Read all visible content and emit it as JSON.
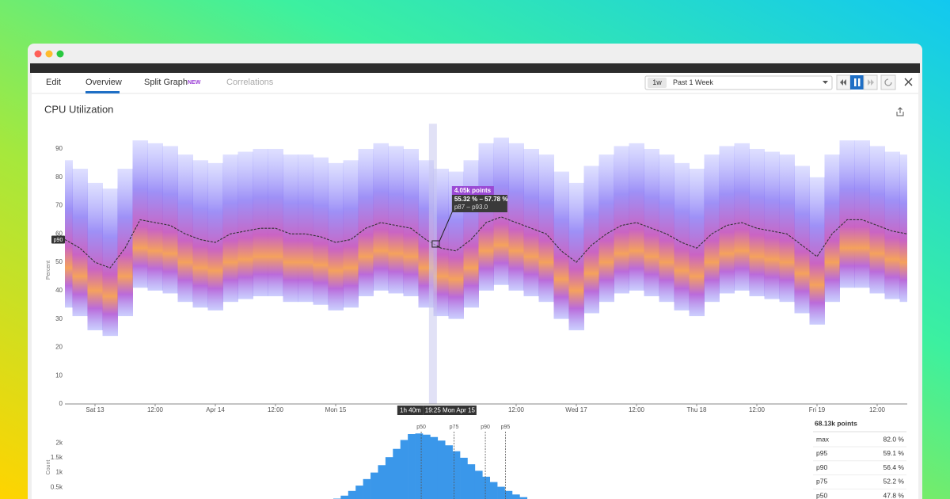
{
  "tabs": [
    "Edit",
    "Overview",
    "Split Graph",
    "Correlations"
  ],
  "new_badge": "NEW",
  "time_picker": {
    "badge": "1w",
    "label": "Past 1 Week"
  },
  "chart_data": [
    {
      "type": "heatmap",
      "title": "CPU Utilization",
      "y_label": "Percent",
      "xlim": [
        0,
        168
      ],
      "ylim": [
        0,
        100
      ],
      "yticks": [
        0,
        10,
        20,
        30,
        40,
        50,
        60,
        70,
        80,
        90
      ],
      "xticks": [
        {
          "value": 6,
          "label": "Sat 13"
        },
        {
          "value": 18,
          "label": "12:00"
        },
        {
          "value": 30,
          "label": "Apr 14"
        },
        {
          "value": 42,
          "label": "12:00"
        },
        {
          "value": 54,
          "label": "Mon 15"
        },
        {
          "value": 90,
          "label": "12:00"
        },
        {
          "value": 102,
          "label": "Wed 17"
        },
        {
          "value": 114,
          "label": "12:00"
        },
        {
          "value": 126,
          "label": "Thu 18"
        },
        {
          "value": 138,
          "label": "12:00"
        },
        {
          "value": 150,
          "label": "Fri 19"
        },
        {
          "value": 162,
          "label": "12:00"
        }
      ],
      "x": [
        0,
        3,
        6,
        9,
        12,
        15,
        18,
        21,
        24,
        27,
        30,
        33,
        36,
        39,
        42,
        45,
        48,
        51,
        54,
        57,
        60,
        63,
        66,
        69,
        72,
        75,
        78,
        81,
        84,
        87,
        90,
        93,
        96,
        99,
        102,
        105,
        108,
        111,
        114,
        117,
        120,
        123,
        126,
        129,
        132,
        135,
        138,
        141,
        144,
        147,
        150,
        153,
        156,
        159,
        162,
        165,
        168
      ],
      "lo": [
        34,
        31,
        26,
        24,
        31,
        41,
        40,
        39,
        36,
        34,
        33,
        36,
        37,
        38,
        38,
        36,
        36,
        35,
        33,
        34,
        38,
        40,
        39,
        38,
        34,
        31,
        30,
        34,
        40,
        42,
        40,
        38,
        36,
        30,
        26,
        32,
        36,
        39,
        40,
        38,
        36,
        33,
        31,
        36,
        39,
        40,
        38,
        37,
        36,
        32,
        28,
        36,
        41,
        41,
        39,
        37,
        36
      ],
      "mid": [
        48,
        45,
        40,
        38,
        45,
        55,
        54,
        53,
        50,
        48,
        47,
        50,
        51,
        52,
        52,
        50,
        50,
        49,
        47,
        48,
        52,
        54,
        53,
        52,
        48,
        45,
        44,
        48,
        54,
        56,
        54,
        52,
        50,
        44,
        40,
        46,
        50,
        53,
        54,
        52,
        50,
        47,
        45,
        50,
        53,
        54,
        52,
        51,
        50,
        46,
        42,
        50,
        55,
        55,
        53,
        51,
        50
      ],
      "hi": [
        86,
        83,
        78,
        76,
        83,
        93,
        92,
        91,
        88,
        86,
        85,
        88,
        89,
        90,
        90,
        88,
        88,
        87,
        85,
        86,
        90,
        92,
        91,
        90,
        86,
        83,
        82,
        86,
        92,
        94,
        92,
        90,
        88,
        82,
        78,
        84,
        88,
        91,
        92,
        90,
        88,
        85,
        83,
        88,
        91,
        92,
        90,
        89,
        88,
        84,
        80,
        88,
        93,
        93,
        91,
        89,
        88
      ],
      "series": [
        {
          "name": "p90",
          "color": "#333333",
          "values": [
            58,
            55,
            50,
            48,
            55,
            65,
            64,
            63,
            60,
            58,
            57,
            60,
            61,
            62,
            62,
            60,
            60,
            59,
            57,
            58,
            62,
            64,
            63,
            62,
            58,
            55,
            54,
            58,
            64,
            66,
            64,
            62,
            60,
            54,
            50,
            56,
            60,
            63,
            64,
            62,
            60,
            57,
            55,
            60,
            63,
            64,
            62,
            61,
            60,
            56,
            52,
            60,
            65,
            65,
            63,
            61,
            60
          ]
        }
      ],
      "cursor": {
        "x": 73.4,
        "duration_label": "1h 40m",
        "time_label": "19:25 Mon Apr 15"
      },
      "tooltip": {
        "points": "4.05k points",
        "range": "55.32 % – 57.78 %",
        "percentiles": "p87 – p93.0"
      }
    },
    {
      "type": "histogram",
      "y_label": "Count",
      "color": "#3a97ea",
      "xlim": [
        0,
        113
      ],
      "ylim": [
        0,
        2600
      ],
      "yticks": [
        {
          "value": 500,
          "label": "0.5k"
        },
        {
          "value": 1000,
          "label": "1k"
        },
        {
          "value": 1500,
          "label": "1.5k"
        },
        {
          "value": 2000,
          "label": "2k"
        }
      ],
      "bins": [
        35,
        36,
        37,
        38,
        39,
        40,
        41,
        42,
        43,
        44,
        45,
        46,
        47,
        48,
        49,
        50,
        51,
        52,
        53,
        54,
        55,
        56,
        57,
        58,
        59,
        60,
        61,
        62,
        63,
        64
      ],
      "values": [
        60,
        120,
        220,
        380,
        560,
        780,
        1000,
        1250,
        1520,
        1800,
        2100,
        2300,
        2320,
        2280,
        2200,
        2080,
        1920,
        1720,
        1500,
        1280,
        1060,
        860,
        680,
        520,
        380,
        260,
        170,
        100,
        50
      ]
    }
  ],
  "stats": {
    "total": "68.13k points",
    "rows": [
      {
        "name": "max",
        "value": 82.0,
        "value_label": "82.0 %"
      },
      {
        "name": "p95",
        "value": 59.1,
        "value_label": "59.1 %"
      },
      {
        "name": "p90",
        "value": 56.4,
        "value_label": "56.4 %"
      },
      {
        "name": "p75",
        "value": 52.2,
        "value_label": "52.2 %"
      },
      {
        "name": "p50",
        "value": 47.8,
        "value_label": "47.8 %"
      }
    ]
  }
}
